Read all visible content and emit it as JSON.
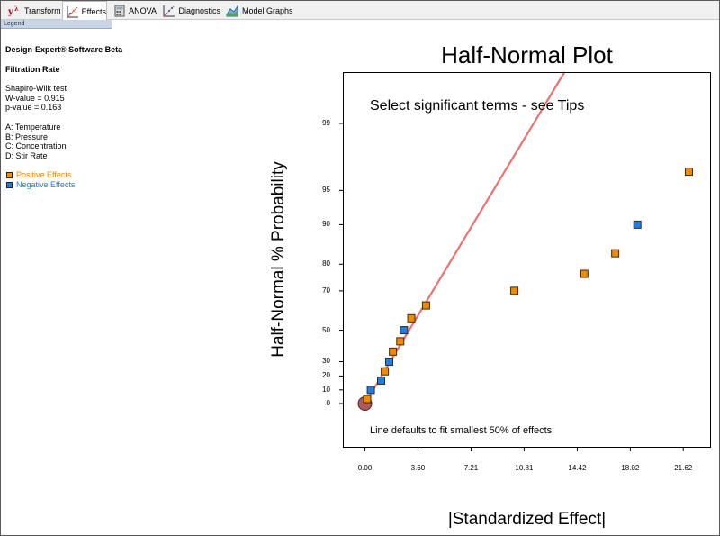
{
  "tabs": [
    {
      "label": "Transform",
      "icon": "y-lambda-icon",
      "active": false
    },
    {
      "label": "Effects",
      "icon": "effects-plot-icon",
      "active": true
    },
    {
      "label": "ANOVA",
      "icon": "calculator-icon",
      "active": false
    },
    {
      "label": "Diagnostics",
      "icon": "diagnostics-icon",
      "active": false
    },
    {
      "label": "Model Graphs",
      "icon": "model-graphs-icon",
      "active": false
    }
  ],
  "legend_panel": {
    "header": "Legend",
    "software": "Design-Expert® Software Beta",
    "response": "Filtration Rate",
    "test_name": "Shapiro-Wilk test",
    "w_value": "W-value = 0.915",
    "p_value": "p-value = 0.163",
    "factors": [
      "A: Temperature",
      "B: Pressure",
      "C: Concentration",
      "D: Stir Rate"
    ],
    "positive_label": "Positive Effects",
    "negative_label": "Negative Effects",
    "positive_color": "#f28a00",
    "negative_color": "#1a7fe8"
  },
  "chart_data": {
    "type": "scatter",
    "title": "Half-Normal Plot",
    "xlabel": "|Standardized Effect|",
    "ylabel": "Half-Normal % Probability",
    "x_ticks": [
      "0.00",
      "3.60",
      "7.21",
      "10.81",
      "14.42",
      "18.02",
      "21.62"
    ],
    "y_ticks": [
      "0",
      "10",
      "20",
      "30",
      "50",
      "70",
      "80",
      "90",
      "95",
      "99"
    ],
    "xlim": [
      -1.5,
      23.5
    ],
    "annotation_top": "Select significant terms - see Tips",
    "annotation_bottom": "Line defaults to fit smallest 50% of effects",
    "line_color": "#f07070",
    "marker_border": "#3a2a1a",
    "origin_marker_color": "#b05a5a",
    "points": [
      {
        "x": 0.0,
        "p": 0,
        "sign": "origin"
      },
      {
        "x": 0.15,
        "p": 3.3,
        "sign": "positive"
      },
      {
        "x": 0.4,
        "p": 10,
        "sign": "negative"
      },
      {
        "x": 1.1,
        "p": 16.7,
        "sign": "negative"
      },
      {
        "x": 1.35,
        "p": 23.3,
        "sign": "positive"
      },
      {
        "x": 1.65,
        "p": 30,
        "sign": "negative"
      },
      {
        "x": 1.9,
        "p": 36.7,
        "sign": "positive"
      },
      {
        "x": 2.4,
        "p": 43.3,
        "sign": "positive"
      },
      {
        "x": 2.65,
        "p": 50,
        "sign": "negative"
      },
      {
        "x": 3.15,
        "p": 56.7,
        "sign": "positive"
      },
      {
        "x": 4.15,
        "p": 63.3,
        "sign": "positive"
      },
      {
        "x": 10.15,
        "p": 70,
        "sign": "positive"
      },
      {
        "x": 14.9,
        "p": 76.7,
        "sign": "positive"
      },
      {
        "x": 17.0,
        "p": 83.3,
        "sign": "positive"
      },
      {
        "x": 18.5,
        "p": 90,
        "sign": "negative"
      },
      {
        "x": 22.0,
        "p": 96.7,
        "sign": "positive"
      }
    ],
    "fit_line": {
      "x0": 0.0,
      "p0": 0,
      "x1": 3.0,
      "p1": 50
    }
  }
}
